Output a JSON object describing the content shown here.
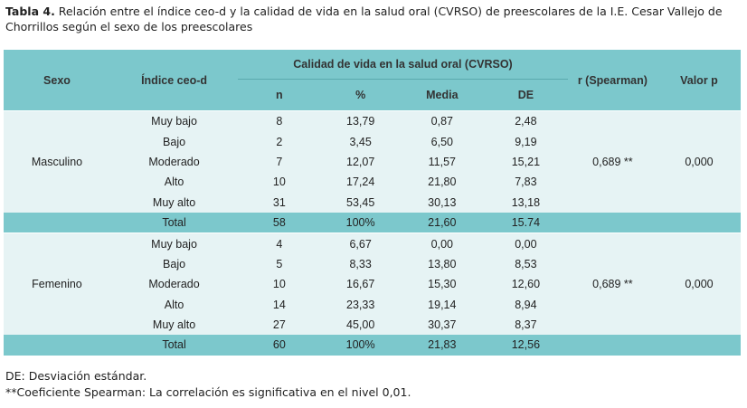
{
  "caption": {
    "label": "Tabla 4.",
    "text": " Relación entre el índice ceo-d y la calidad de vida en la salud oral (CVRSO) de preescolares de la I.E. Cesar Vallejo de Chorrillos según el sexo de los preescolares"
  },
  "header": {
    "sexo": "Sexo",
    "indice": "Índice ceo-d",
    "group": "Calidad de vida en la salud oral (CVRSO)",
    "n": "n",
    "pct": "%",
    "media": "Media",
    "de": "DE",
    "r": "r (Spearman)",
    "p": "Valor p"
  },
  "groups": [
    {
      "sex": "Masculino",
      "r": "0,689 **",
      "p": "0,000",
      "rows": [
        {
          "indice": "Muy bajo",
          "n": "8",
          "pct": "13,79",
          "media": "0,87",
          "de": "2,48"
        },
        {
          "indice": "Bajo",
          "n": "2",
          "pct": "3,45",
          "media": "6,50",
          "de": "9,19"
        },
        {
          "indice": "Moderado",
          "n": "7",
          "pct": "12,07",
          "media": "11,57",
          "de": "15,21"
        },
        {
          "indice": "Alto",
          "n": "10",
          "pct": "17,24",
          "media": "21,80",
          "de": "7,83"
        },
        {
          "indice": "Muy alto",
          "n": "31",
          "pct": "53,45",
          "media": "30,13",
          "de": "13,18"
        },
        {
          "indice": "Total",
          "n": "58",
          "pct": "100%",
          "media": "21,60",
          "de": "15.74"
        }
      ]
    },
    {
      "sex": "Femenino",
      "r": "0,689 **",
      "p": "0,000",
      "rows": [
        {
          "indice": "Muy bajo",
          "n": "4",
          "pct": "6,67",
          "media": "0,00",
          "de": "0,00"
        },
        {
          "indice": "Bajo",
          "n": "5",
          "pct": "8,33",
          "media": "13,80",
          "de": "8,53"
        },
        {
          "indice": "Moderado",
          "n": "10",
          "pct": "16,67",
          "media": "15,30",
          "de": "12,60"
        },
        {
          "indice": "Alto",
          "n": "14",
          "pct": "23,33",
          "media": "19,14",
          "de": "8,94"
        },
        {
          "indice": "Muy alto",
          "n": "27",
          "pct": "45,00",
          "media": "30,37",
          "de": "8,37"
        },
        {
          "indice": "Total",
          "n": "60",
          "pct": "100%",
          "media": "21,83",
          "de": "12,56"
        }
      ]
    }
  ],
  "footnotes": [
    "DE: Desviación estándar.",
    "**Coeficiente Spearman: La correlación es significativa en el nivel 0,01."
  ],
  "colors": {
    "header_bg": "#7cc8cc",
    "row_bg": "#e6f3f4"
  }
}
